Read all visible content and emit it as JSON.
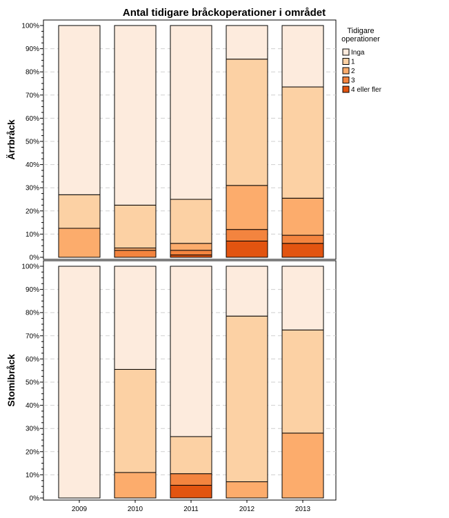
{
  "chart_data": {
    "type": "bar",
    "stacked": true,
    "title": "Antal tidigare bråckoperationer i området",
    "categories": [
      "2009",
      "2010",
      "2011",
      "2012",
      "2013"
    ],
    "y_ticks": [
      "0%",
      "10%",
      "20%",
      "30%",
      "40%",
      "50%",
      "60%",
      "70%",
      "80%",
      "90%",
      "100%"
    ],
    "ylim": [
      0,
      100
    ],
    "grid": "horizontal dashed",
    "legend": {
      "title_lines": [
        "Tidigare",
        "operationer"
      ],
      "placement": "top-right",
      "entries": [
        {
          "label": "Inga",
          "color": "#fdebdd"
        },
        {
          "label": "1",
          "color": "#fcd1a4"
        },
        {
          "label": "2",
          "color": "#fcac6c"
        },
        {
          "label": "3",
          "color": "#f3843f"
        },
        {
          "label": "4 eller fler",
          "color": "#e25410"
        }
      ]
    },
    "panels": [
      {
        "label": "Ärrbråck",
        "series": [
          {
            "name": "4 eller fler",
            "values": [
              0,
              0,
              1,
              7,
              6
            ]
          },
          {
            "name": "3",
            "values": [
              0,
              3,
              2,
              5,
              3.5
            ]
          },
          {
            "name": "2",
            "values": [
              12.5,
              1,
              3,
              19,
              16
            ]
          },
          {
            "name": "1",
            "values": [
              14.5,
              18.5,
              19,
              54.5,
              48
            ]
          },
          {
            "name": "Inga",
            "values": [
              73,
              77.5,
              75,
              14.5,
              26.5
            ]
          }
        ]
      },
      {
        "label": "Stomibråck",
        "series": [
          {
            "name": "4 eller fler",
            "values": [
              0,
              0,
              5.5,
              0,
              0
            ]
          },
          {
            "name": "3",
            "values": [
              0,
              0,
              5,
              0,
              0
            ]
          },
          {
            "name": "2",
            "values": [
              0,
              11,
              0,
              7,
              28
            ]
          },
          {
            "name": "1",
            "values": [
              0,
              44.5,
              16,
              71.5,
              44.5
            ]
          },
          {
            "name": "Inga",
            "values": [
              100,
              44.5,
              73.5,
              21.5,
              27.5
            ]
          }
        ]
      }
    ]
  }
}
